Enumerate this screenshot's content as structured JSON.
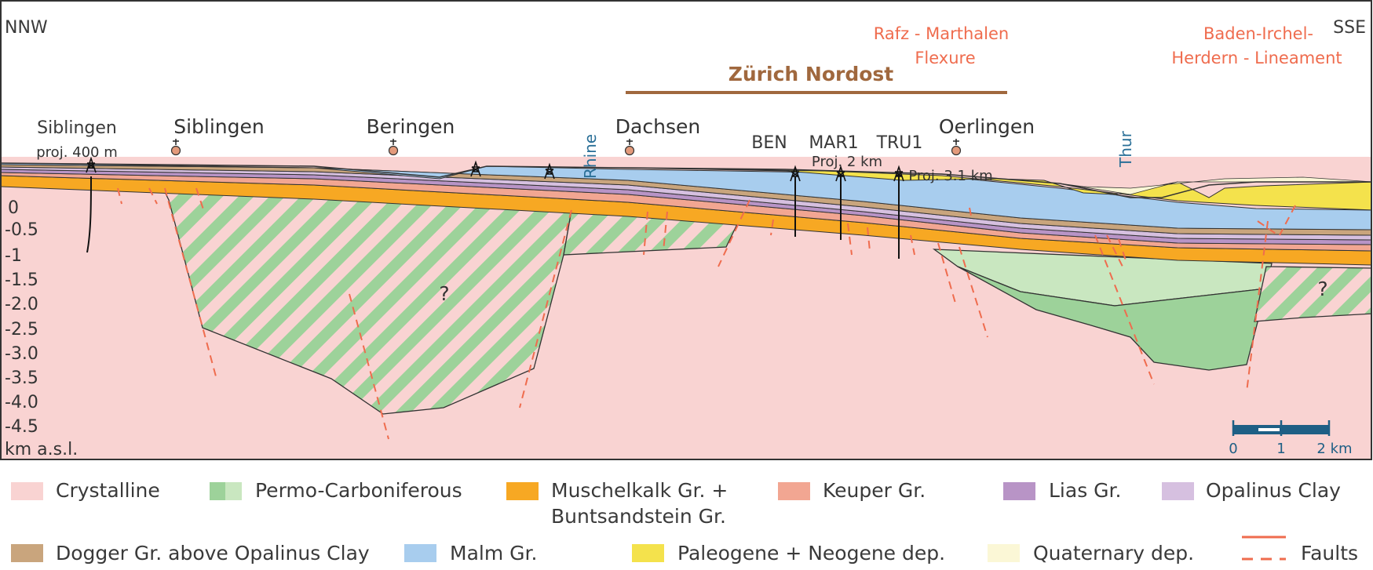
{
  "direction": {
    "left": "NNW",
    "right": "SSE"
  },
  "title_region": "Zürich Nordost",
  "structures": [
    {
      "id": "rafz",
      "lines": [
        "Rafz - Marthalen",
        "Flexure"
      ]
    },
    {
      "id": "baden",
      "lines": [
        "Baden-Irchel-",
        "Herdern - Lineament"
      ]
    }
  ],
  "villages": [
    {
      "id": "siblingen",
      "label": "Siblingen"
    },
    {
      "id": "beringen",
      "label": "Beringen"
    },
    {
      "id": "dachsen",
      "label": "Dachsen"
    },
    {
      "id": "oerlingen",
      "label": "Oerlingen"
    }
  ],
  "boreholes": [
    {
      "id": "siblingen-proj",
      "lines": [
        "Siblingen",
        "proj. 400 m"
      ]
    },
    {
      "id": "ben",
      "label": "BEN"
    },
    {
      "id": "mar1",
      "label": "MAR1",
      "note": "Proj. 2 km"
    },
    {
      "id": "tru1",
      "label": "TRU1",
      "note": "Proj. 3.1 km"
    }
  ],
  "rivers": {
    "rhine": "Rhine",
    "thur": "Thur"
  },
  "question_mark": "?",
  "depth_axis": {
    "ticks": [
      "0",
      "-0.5",
      "-1",
      "-1.5",
      "-2.0",
      "-2.5",
      "-3.0",
      "-3.5",
      "-4.0",
      "-4.5"
    ],
    "unit": "km a.s.l."
  },
  "scalebar": {
    "labels": [
      "0",
      "1",
      "2 km"
    ],
    "color": "#1e5f85"
  },
  "colors": {
    "crystalline": "#f9d3d2",
    "permo_green": "#9dd29a",
    "muschelkalk": "#f7a823",
    "keuper": "#f2a692",
    "lias": "#b894c6",
    "opalinus": "#d6c0e0",
    "dogger": "#c9a57d",
    "malm": "#a8cdee",
    "paleogene": "#f4e24c",
    "quaternary": "#fbf7d6",
    "fault": "#ef6c4e",
    "title": "#a0683e"
  },
  "legend": [
    {
      "id": "crystalline",
      "lines": [
        "Crystalline"
      ],
      "swatch": "crystalline"
    },
    {
      "id": "permo",
      "lines": [
        "Permo-Carboniferous"
      ],
      "swatch": "permo"
    },
    {
      "id": "muschelkalk",
      "lines": [
        "Muschelkalk Gr. +",
        "Buntsandstein Gr."
      ],
      "swatch": "muschelkalk"
    },
    {
      "id": "keuper",
      "lines": [
        "Keuper Gr."
      ],
      "swatch": "keuper"
    },
    {
      "id": "lias",
      "lines": [
        "Lias Gr."
      ],
      "swatch": "lias"
    },
    {
      "id": "opalinus",
      "lines": [
        "Opalinus Clay"
      ],
      "swatch": "opalinus"
    },
    {
      "id": "dogger",
      "lines": [
        "Dogger Gr. above Opalinus Clay"
      ],
      "swatch": "dogger"
    },
    {
      "id": "malm",
      "lines": [
        "Malm Gr."
      ],
      "swatch": "malm"
    },
    {
      "id": "paleogene",
      "lines": [
        "Paleogene + Neogene dep."
      ],
      "swatch": "paleogene"
    },
    {
      "id": "quaternary",
      "lines": [
        "Quaternary dep."
      ],
      "swatch": "quaternary"
    },
    {
      "id": "faults",
      "lines": [
        "Faults"
      ],
      "swatch": "faults"
    }
  ]
}
